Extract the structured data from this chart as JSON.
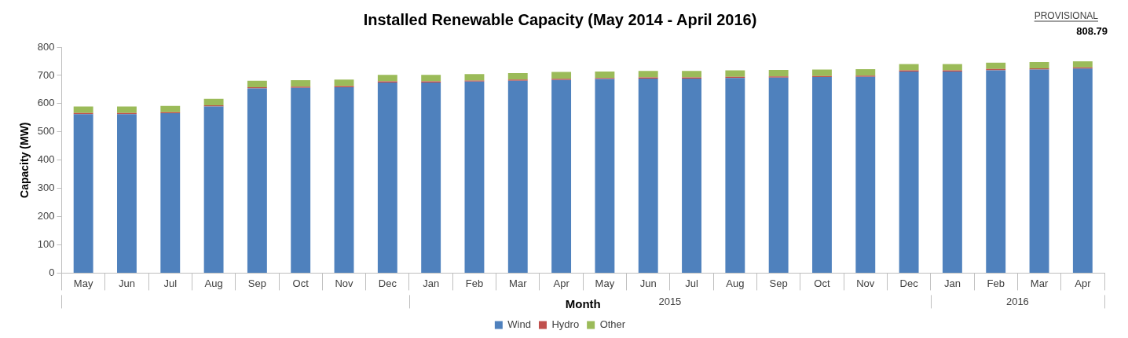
{
  "chart_data": {
    "type": "bar",
    "stacked": true,
    "title": "Installed Renewable Capacity (May 2014 - April 2016)",
    "xlabel": "Month",
    "ylabel": "Capacity (MW)",
    "categories": [
      "May",
      "Jun",
      "Jul",
      "Aug",
      "Sep",
      "Oct",
      "Nov",
      "Dec",
      "Jan",
      "Feb",
      "Mar",
      "Apr",
      "May",
      "Jun",
      "Jul",
      "Aug",
      "Sep",
      "Oct",
      "Nov",
      "Dec",
      "Jan",
      "Feb",
      "Mar",
      "Apr"
    ],
    "series": [
      {
        "name": "Wind",
        "color": "#4f81bd",
        "values": [
          563,
          563,
          566,
          590,
          654,
          656,
          658,
          675,
          675,
          678,
          681,
          684,
          687,
          689,
          689,
          691,
          692,
          694,
          695,
          714,
          714,
          718,
          721,
          724
        ]
      },
      {
        "name": "Hydro",
        "color": "#c0504d",
        "values": [
          4,
          4,
          4,
          4,
          4,
          4,
          4,
          4,
          4,
          4,
          4,
          4,
          4,
          4,
          4,
          4,
          4,
          4,
          4,
          4,
          4,
          5,
          4,
          4
        ]
      },
      {
        "name": "Other",
        "color": "#9bbb59",
        "values": [
          23,
          23,
          22,
          23,
          23,
          23,
          23,
          23,
          23,
          23,
          23,
          24,
          23,
          23,
          23,
          23,
          23,
          23,
          23,
          22,
          22,
          22,
          22,
          22
        ]
      }
    ],
    "ylim": [
      0,
      800
    ],
    "yticks": [
      0,
      100,
      200,
      300,
      400,
      500,
      600,
      700,
      800
    ],
    "grid": false,
    "legend": "bottom",
    "annotations": [
      "PROVISIONAL",
      "808.79",
      "2015",
      "2016"
    ]
  }
}
